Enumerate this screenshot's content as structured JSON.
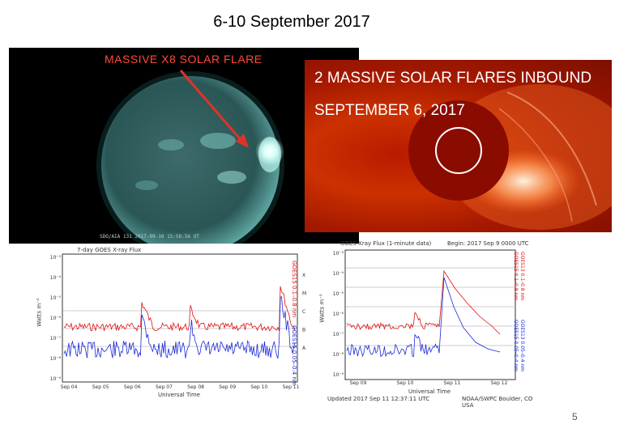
{
  "slide": {
    "title": "6-10  September 2017",
    "page_number": "5"
  },
  "sdo_image": {
    "caption": "MASSIVE X8 SOLAR FLARE",
    "footer": "SDO/AIA  131   2017-09-10 15:58:56 UT"
  },
  "lasco_image": {
    "title": "2 MASSIVE SOLAR FLARES INBOUND",
    "date": "SEPTEMBER 6, 2017"
  },
  "plot_left": {
    "title": "7-day GOES X-ray Flux",
    "ylabel": "Watts m⁻²",
    "xlabel": "Universal Time",
    "x_ticks": [
      "Sep 04",
      "Sep 05",
      "Sep 06",
      "Sep 07",
      "Sep 08",
      "Sep 09",
      "Sep 10",
      "Sep 11"
    ],
    "y_ticks": [
      "10⁻³",
      "10⁻⁴",
      "10⁻⁵",
      "10⁻⁶",
      "10⁻⁷",
      "10⁻⁸",
      "10⁻⁹"
    ],
    "class_labels": [
      "X",
      "M",
      "C",
      "B",
      "A"
    ],
    "legend_red": "GOES15 0.1–0.8 nm",
    "legend_blue": "GOES15 0.05–0.4 nm"
  },
  "plot_right": {
    "title": "GOES Xray Flux (1-minute data)",
    "begin": "Begin: 2017 Sep 9 0000 UTC",
    "ylabel": "Watts m⁻²",
    "xlabel": "Universal Time",
    "x_ticks": [
      "Sep 09",
      "Sep 10",
      "Sep 11",
      "Sep 12"
    ],
    "y_ticks": [
      "10⁻³",
      "10⁻⁴",
      "10⁻⁵",
      "10⁻⁶",
      "10⁻⁷",
      "10⁻⁸",
      "10⁻⁹"
    ],
    "legend_red_1": "GOES15 0.1–0.8 nm",
    "legend_red_2": "GOES13 0.1–0.8 nm",
    "legend_blue_1": "GOES15 0.05–0.4 nm",
    "legend_blue_2": "GOES13 0.05–0.4 nm",
    "updated": "Updated 2017 Sep 11 12:37:11 UTC",
    "credit": "NOAA/SWPC Boulder, CO USA"
  },
  "colors": {
    "long_channel": "#e01010",
    "short_channel": "#1a2ad8",
    "title_red": "#ff4a3a"
  }
}
